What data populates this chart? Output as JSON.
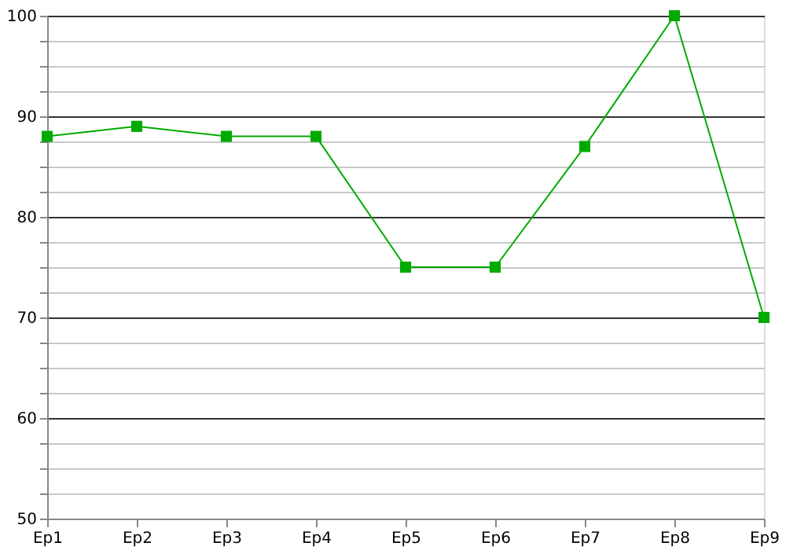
{
  "chart_data": {
    "type": "line",
    "categories": [
      "Ep1",
      "Ep2",
      "Ep3",
      "Ep4",
      "Ep5",
      "Ep6",
      "Ep7",
      "Ep8",
      "Ep9"
    ],
    "series": [
      {
        "color": "#00aa00",
        "values": [
          88,
          89,
          88,
          88,
          75,
          75,
          87,
          100,
          70
        ]
      }
    ],
    "ylim": [
      50,
      100
    ],
    "yticks": [
      50,
      {
        "value": 52.5,
        "label": null
      },
      {
        "value": 55,
        "label": null
      },
      {
        "value": 57.5,
        "label": null
      },
      60,
      {
        "value": 62.5,
        "label": null
      },
      {
        "value": 65,
        "label": null
      },
      {
        "value": 67.5,
        "label": null
      },
      70,
      {
        "value": 72.5,
        "label": null
      },
      {
        "value": 75,
        "label": null
      },
      {
        "value": 77.5,
        "label": null
      },
      80,
      {
        "value": 82.5,
        "label": null
      },
      {
        "value": 85,
        "label": null
      },
      {
        "value": 87.5,
        "label": null
      },
      90,
      {
        "value": 92.5,
        "label": null
      },
      {
        "value": 95,
        "label": null
      },
      {
        "value": 97.5,
        "label": null
      },
      100
    ],
    "grid": "y",
    "marker": "square",
    "line_style": "solid"
  }
}
